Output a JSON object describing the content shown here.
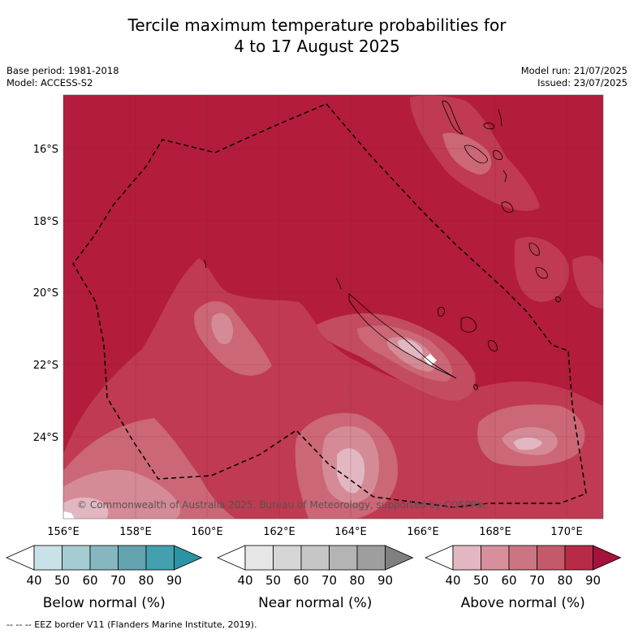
{
  "title": {
    "line1": "Tercile maximum temperature probabilities for",
    "line2": "4 to 17 August 2025"
  },
  "meta": {
    "base_period": "Base period: 1981-2018",
    "model": "Model: ACCESS-S2",
    "model_run": "Model run: 21/07/2025",
    "issued": "Issued: 23/07/2025"
  },
  "map": {
    "background_color": "#b31c3c",
    "lat_labels": [
      "16°S",
      "18°S",
      "20°S",
      "22°S",
      "24°S"
    ],
    "lon_labels": [
      "156°E",
      "158°E",
      "160°E",
      "162°E",
      "164°E",
      "166°E",
      "168°E",
      "170°E"
    ],
    "credit": "© Commonwealth of Australia 2025, Bureau of Meteorology, supported by COSPPac"
  },
  "colorbars": [
    {
      "title": "Below normal (%)",
      "ticks": [
        "40",
        "50",
        "60",
        "70",
        "80",
        "90"
      ],
      "colors": [
        "#ffffff",
        "#c9e2e7",
        "#a6ccd3",
        "#86b7c1",
        "#64a3b0",
        "#42a0af",
        "#2c93a4"
      ]
    },
    {
      "title": "Near normal (%)",
      "ticks": [
        "40",
        "50",
        "60",
        "70",
        "80",
        "90"
      ],
      "colors": [
        "#ffffff",
        "#e6e6e6",
        "#d6d6d6",
        "#c6c6c6",
        "#b4b4b4",
        "#9e9e9e",
        "#808080"
      ]
    },
    {
      "title": "Above normal (%)",
      "ticks": [
        "40",
        "50",
        "60",
        "70",
        "80",
        "90"
      ],
      "colors": [
        "#ffffff",
        "#e2b7c1",
        "#d88f9c",
        "#cc7582",
        "#c45969",
        "#b82b46",
        "#a5123a"
      ]
    }
  ],
  "legend_note": "--  --  -- EEZ border V11 (Flanders Marine Institute, 2019)."
}
